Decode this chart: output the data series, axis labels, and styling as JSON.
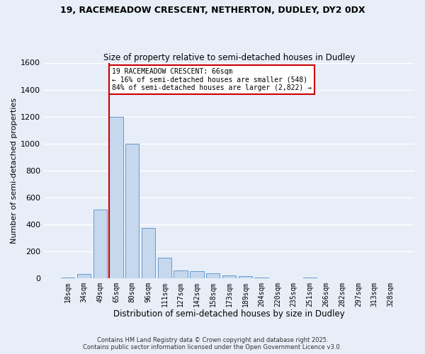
{
  "title_line1": "19, RACEMEADOW CRESCENT, NETHERTON, DUDLEY, DY2 0DX",
  "title_line2": "Size of property relative to semi-detached houses in Dudley",
  "xlabel": "Distribution of semi-detached houses by size in Dudley",
  "ylabel": "Number of semi-detached properties",
  "categories": [
    "18sqm",
    "34sqm",
    "49sqm",
    "65sqm",
    "80sqm",
    "96sqm",
    "111sqm",
    "127sqm",
    "142sqm",
    "158sqm",
    "173sqm",
    "189sqm",
    "204sqm",
    "220sqm",
    "235sqm",
    "251sqm",
    "266sqm",
    "282sqm",
    "297sqm",
    "313sqm",
    "328sqm"
  ],
  "values": [
    5,
    30,
    510,
    1200,
    1000,
    370,
    150,
    55,
    50,
    35,
    20,
    15,
    5,
    0,
    0,
    5,
    0,
    0,
    0,
    0,
    0
  ],
  "bar_color": "#c5d8ee",
  "bar_edge_color": "#6699cc",
  "vline_color": "#cc0000",
  "annotation_text": "19 RACEMEADOW CRESCENT: 66sqm\n← 16% of semi-detached houses are smaller (548)\n84% of semi-detached houses are larger (2,822) →",
  "annotation_box_color": "#cc0000",
  "annotation_bg": "#ffffff",
  "ylim": [
    0,
    1600
  ],
  "background_color": "#e8eef8",
  "grid_color": "#ffffff",
  "footer": "Contains HM Land Registry data © Crown copyright and database right 2025.\nContains public sector information licensed under the Open Government Licence v3.0."
}
